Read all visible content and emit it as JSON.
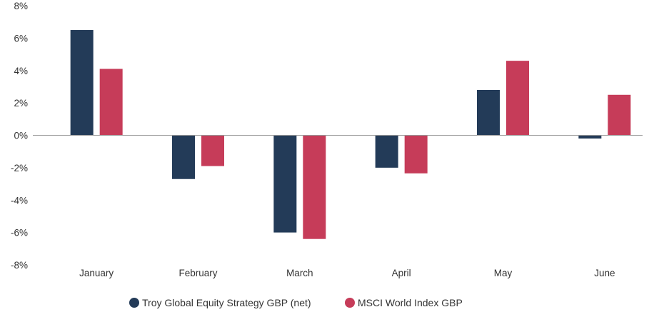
{
  "chart_data": {
    "type": "bar",
    "categories": [
      "January",
      "February",
      "March",
      "April",
      "May",
      "June"
    ],
    "series": [
      {
        "name": "Troy Global Equity Strategy GBP (net)",
        "color": "#233b58",
        "values": [
          6.5,
          -2.7,
          -6.0,
          -2.0,
          2.8,
          -0.2
        ]
      },
      {
        "name": "MSCI World Index GBP",
        "color": "#c63c59",
        "values": [
          4.1,
          -1.9,
          -6.4,
          -2.35,
          4.6,
          2.5
        ]
      }
    ],
    "ylim": [
      -8,
      8
    ],
    "yticks": [
      8,
      6,
      4,
      2,
      0,
      -2,
      -4,
      -6,
      -8
    ],
    "ytick_suffix": "%",
    "grid": false,
    "legend_position": "bottom-center",
    "title": "",
    "xlabel": "",
    "ylabel": ""
  }
}
